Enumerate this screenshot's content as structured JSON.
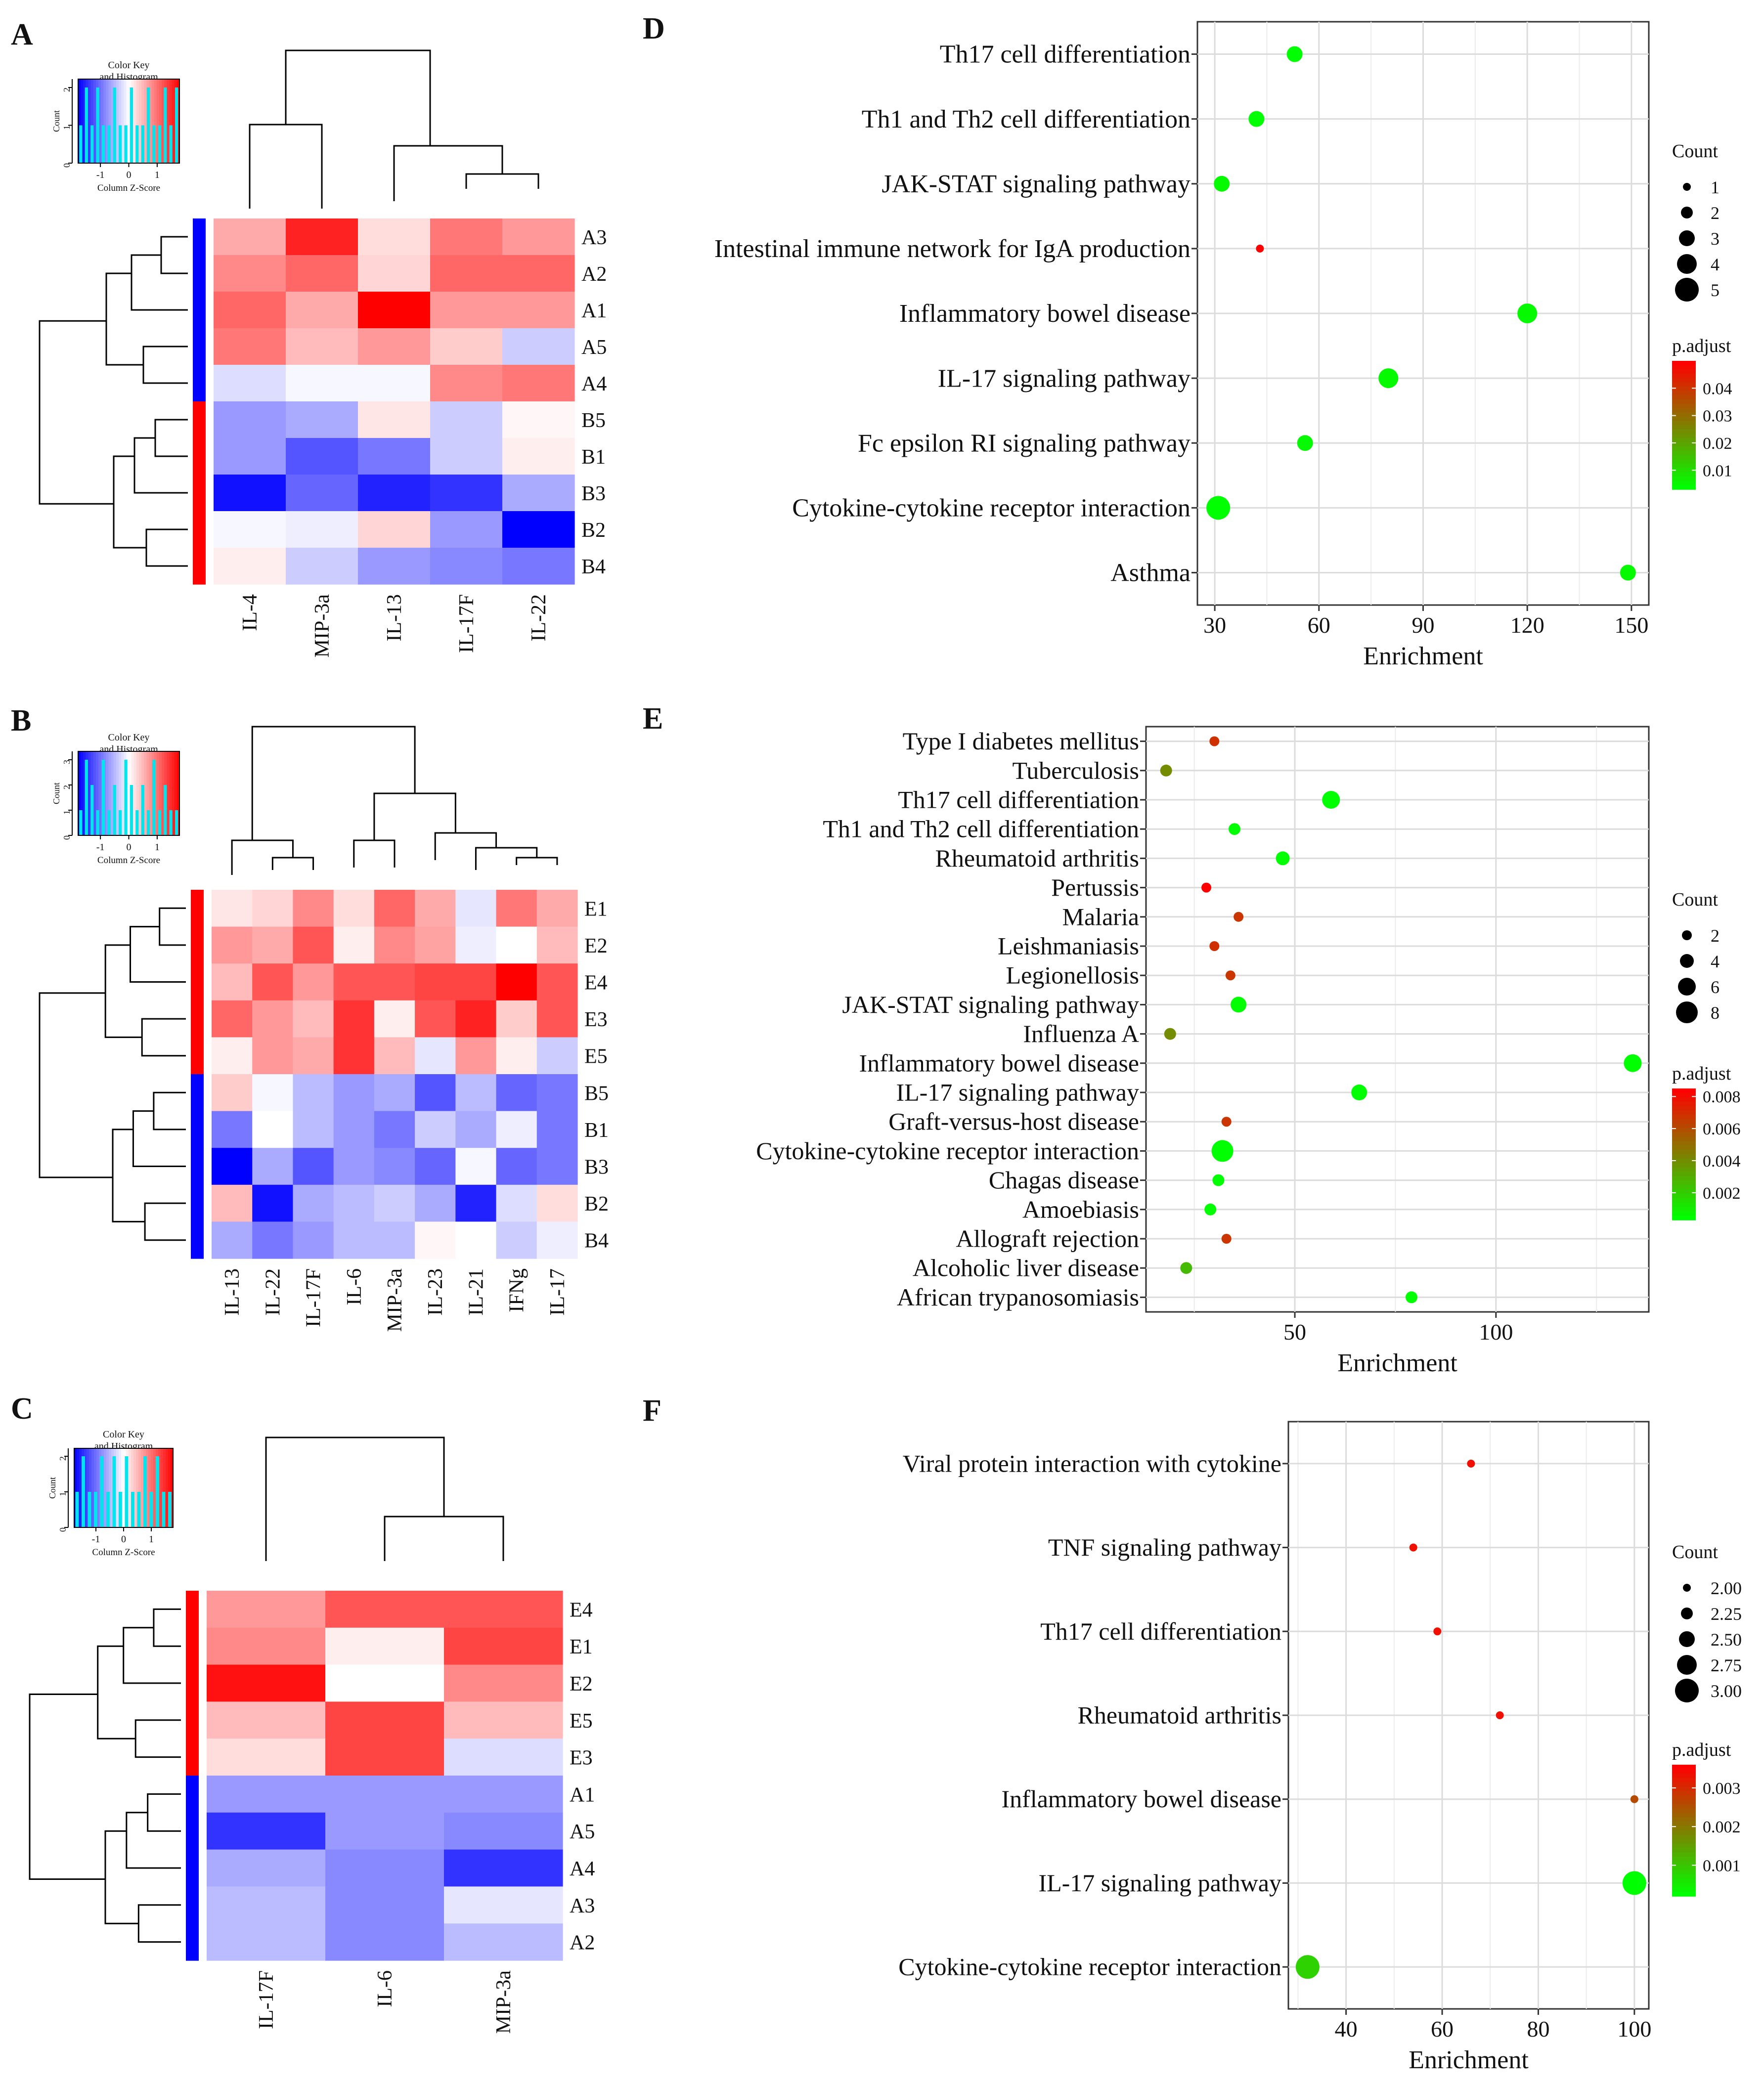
{
  "panel_labels": [
    "A",
    "B",
    "C",
    "D",
    "E",
    "F"
  ],
  "color_key": {
    "title_line1": "Color Key",
    "title_line2": "and Histogram",
    "xlabel": "Column Z-Score",
    "ylabel": "Count",
    "xticks": [
      "-1",
      "0",
      "1"
    ]
  },
  "colors": {
    "low": "#0000ff",
    "mid": "#ffffff",
    "high": "#ff0000",
    "hist": "#00e5ee",
    "dot_low": "#00ff00",
    "dot_high": "#ff0000"
  },
  "chart_data": [
    {
      "id": "A",
      "type": "heatmap",
      "columns": [
        "IL-4",
        "MIP-3a",
        "IL-13",
        "IL-17F",
        "IL-22"
      ],
      "rows": [
        "A3",
        "A2",
        "A1",
        "A5",
        "A4",
        "B5",
        "B1",
        "B3",
        "B2",
        "B4"
      ],
      "row_groups": [
        "A",
        "A",
        "A",
        "A",
        "A",
        "B",
        "B",
        "B",
        "B",
        "B"
      ],
      "values": [
        [
          0.5,
          1.3,
          0.2,
          0.8,
          0.6
        ],
        [
          0.7,
          0.9,
          0.25,
          0.9,
          0.9
        ],
        [
          0.9,
          0.5,
          1.5,
          0.6,
          0.6
        ],
        [
          0.8,
          0.4,
          0.6,
          0.3,
          -0.3
        ],
        [
          -0.2,
          -0.05,
          -0.05,
          0.7,
          0.8
        ],
        [
          -0.6,
          -0.5,
          0.15,
          -0.3,
          0.05
        ],
        [
          -0.6,
          -1.0,
          -0.8,
          -0.3,
          0.1
        ],
        [
          -1.4,
          -0.9,
          -1.3,
          -1.2,
          -0.5
        ],
        [
          -0.05,
          -0.1,
          0.25,
          -0.6,
          -1.5
        ],
        [
          0.1,
          -0.3,
          -0.6,
          -0.7,
          -0.8
        ]
      ],
      "hist_counts": [
        1,
        2,
        1,
        2,
        1,
        1,
        2,
        1,
        1,
        2,
        1,
        1,
        2,
        1,
        1,
        2,
        1,
        2
      ],
      "hist_ymax": 2,
      "hist_yticks": [
        "0",
        "1",
        "2"
      ]
    },
    {
      "id": "B",
      "type": "heatmap",
      "columns": [
        "IL-13",
        "IL-22",
        "IL-17F",
        "IL-6",
        "MIP-3a",
        "IL-23",
        "IL-21",
        "IFNg",
        "IL-17"
      ],
      "rows": [
        "E1",
        "E2",
        "E4",
        "E3",
        "E5",
        "B5",
        "B1",
        "B3",
        "B2",
        "B4"
      ],
      "row_groups": [
        "E",
        "E",
        "E",
        "E",
        "E",
        "B",
        "B",
        "B",
        "B",
        "B"
      ],
      "values": [
        [
          0.15,
          0.25,
          0.7,
          0.2,
          0.9,
          0.5,
          -0.15,
          0.8,
          0.5
        ],
        [
          0.6,
          0.5,
          1.0,
          0.1,
          0.7,
          0.55,
          -0.1,
          0.0,
          0.4
        ],
        [
          0.4,
          1.0,
          0.6,
          1.0,
          1.0,
          1.1,
          1.1,
          1.5,
          1.0
        ],
        [
          0.9,
          0.6,
          0.4,
          1.2,
          0.1,
          1.0,
          1.3,
          0.3,
          1.0
        ],
        [
          0.1,
          0.6,
          0.5,
          1.2,
          0.4,
          -0.15,
          0.6,
          0.1,
          -0.3
        ],
        [
          0.3,
          -0.05,
          -0.4,
          -0.6,
          -0.5,
          -1.0,
          -0.4,
          -0.9,
          -0.8
        ],
        [
          -0.8,
          0.0,
          -0.4,
          -0.6,
          -0.8,
          -0.3,
          -0.5,
          -0.1,
          -0.8
        ],
        [
          -1.5,
          -0.5,
          -1.0,
          -0.6,
          -0.7,
          -0.9,
          -0.05,
          -0.9,
          -0.8
        ],
        [
          0.4,
          -1.4,
          -0.5,
          -0.4,
          -0.3,
          -0.5,
          -1.3,
          -0.2,
          0.2
        ],
        [
          -0.5,
          -0.8,
          -0.6,
          -0.4,
          -0.4,
          0.05,
          0.0,
          -0.3,
          -0.1
        ]
      ],
      "hist_counts": [
        1,
        3,
        2,
        1,
        3,
        1,
        2,
        1,
        3,
        2,
        1,
        2,
        1,
        3,
        1,
        2,
        1,
        1
      ],
      "hist_ymax": 3,
      "hist_yticks": [
        "0",
        "1",
        "2",
        "3"
      ]
    },
    {
      "id": "C",
      "type": "heatmap",
      "columns": [
        "IL-17F",
        "IL-6",
        "MIP-3a"
      ],
      "rows": [
        "E4",
        "E1",
        "E2",
        "E5",
        "E3",
        "A1",
        "A5",
        "A4",
        "A3",
        "A2"
      ],
      "row_groups": [
        "E",
        "E",
        "E",
        "E",
        "E",
        "A",
        "A",
        "A",
        "A",
        "A"
      ],
      "values": [
        [
          0.6,
          1.0,
          1.0
        ],
        [
          0.7,
          0.1,
          1.1
        ],
        [
          1.4,
          0.0,
          0.7
        ],
        [
          0.4,
          1.1,
          0.4
        ],
        [
          0.2,
          1.1,
          -0.2
        ],
        [
          -0.6,
          -0.6,
          -0.6
        ],
        [
          -1.2,
          -0.6,
          -0.7
        ],
        [
          -0.5,
          -0.7,
          -1.2
        ],
        [
          -0.4,
          -0.7,
          -0.15
        ],
        [
          -0.4,
          -0.7,
          -0.4
        ]
      ],
      "hist_counts": [
        1,
        2,
        1,
        1,
        2,
        1,
        2,
        1,
        2,
        1,
        1,
        2,
        1,
        2,
        1,
        1
      ],
      "hist_ymax": 2,
      "hist_yticks": [
        "0",
        "1",
        "2"
      ]
    },
    {
      "id": "D",
      "type": "scatter",
      "xlabel": "Enrichment",
      "xlim": [
        25,
        155
      ],
      "xticks": [
        30,
        60,
        90,
        120,
        150
      ],
      "categories": [
        "Th17 cell differentiation",
        "Th1 and Th2 cell differentiation",
        "JAK-STAT signaling pathway",
        "Intestinal immune network for IgA production",
        "Inflammatory bowel disease",
        "IL-17 signaling pathway",
        "Fc epsilon RI signaling pathway",
        "Cytokine-cytokine receptor interaction",
        "Asthma"
      ],
      "x": [
        53,
        42,
        32,
        43,
        120,
        80,
        56,
        31,
        149
      ],
      "count": [
        3,
        3,
        3,
        1,
        4,
        4,
        3,
        5,
        3
      ],
      "p_adjust": [
        0.003,
        0.003,
        0.004,
        0.05,
        0.004,
        0.004,
        0.004,
        0.003,
        0.004
      ],
      "count_legend_title": "Count",
      "count_legend": [
        "1",
        "2",
        "3",
        "4",
        "5"
      ],
      "count_legend_values": [
        1,
        2,
        3,
        4,
        5
      ],
      "count_range": [
        1,
        5
      ],
      "padj_legend_title": "p.adjust",
      "padj_ticks": [
        "0.04",
        "0.03",
        "0.02",
        "0.01"
      ],
      "padj_tick_values": [
        0.04,
        0.03,
        0.02,
        0.01
      ],
      "padj_range": [
        0.003,
        0.05
      ]
    },
    {
      "id": "E",
      "type": "scatter",
      "xlabel": "Enrichment",
      "xlim": [
        13,
        138
      ],
      "xticks": [
        50,
        100
      ],
      "categories": [
        "Type I diabetes mellitus",
        "Tuberculosis",
        "Th17 cell differentiation",
        "Th1 and Th2 cell differentiation",
        "Rheumatoid arthritis",
        "Pertussis",
        "Malaria",
        "Leishmaniasis",
        "Legionellosis",
        "JAK-STAT signaling pathway",
        "Influenza A",
        "Inflammatory bowel disease",
        "IL-17 signaling pathway",
        "Graft-versus-host disease",
        "Cytokine-cytokine receptor interaction",
        "Chagas disease",
        "Amoebiasis",
        "Allograft rejection",
        "Alcoholic liver disease",
        "African trypanosomiasis"
      ],
      "x": [
        30,
        18,
        59,
        35,
        47,
        28,
        36,
        30,
        34,
        36,
        19,
        134,
        66,
        33,
        32,
        31,
        29,
        33,
        23,
        79
      ],
      "count": [
        2,
        3,
        6,
        3,
        4,
        2,
        2,
        2,
        2,
        5,
        3,
        6,
        5,
        2,
        8,
        3,
        3,
        2,
        3,
        3
      ],
      "p_adjust": [
        0.007,
        0.004,
        0.0003,
        0.0003,
        0.0003,
        0.0085,
        0.0068,
        0.007,
        0.0068,
        0.0003,
        0.004,
        0.0003,
        0.0003,
        0.0068,
        0.0003,
        0.0003,
        0.0003,
        0.0068,
        0.0025,
        0.0003
      ],
      "count_legend_title": "Count",
      "count_legend": [
        "2",
        "4",
        "6",
        "8"
      ],
      "count_legend_values": [
        2,
        4,
        6,
        8
      ],
      "count_range": [
        2,
        8
      ],
      "padj_legend_title": "p.adjust",
      "padj_ticks": [
        "0.008",
        "0.006",
        "0.004",
        "0.002"
      ],
      "padj_tick_values": [
        0.008,
        0.006,
        0.004,
        0.002
      ],
      "padj_range": [
        0.0003,
        0.0085
      ]
    },
    {
      "id": "F",
      "type": "scatter",
      "xlabel": "Enrichment",
      "xlim": [
        28,
        103
      ],
      "xticks": [
        40,
        60,
        80,
        100
      ],
      "categories": [
        "Viral protein interaction with cytokine",
        "TNF signaling pathway",
        "Th17 cell differentiation",
        "Rheumatoid arthritis",
        "Inflammatory bowel disease",
        "IL-17 signaling pathway",
        "Cytokine-cytokine receptor interaction"
      ],
      "x": [
        66,
        54,
        59,
        72,
        100,
        100,
        32
      ],
      "count": [
        2,
        2,
        2,
        2,
        2,
        3,
        3
      ],
      "p_adjust": [
        0.0034,
        0.0034,
        0.0034,
        0.0034,
        0.0026,
        0.0002,
        0.0008
      ],
      "count_legend_title": "Count",
      "count_legend": [
        "2.00",
        "2.25",
        "2.50",
        "2.75",
        "3.00"
      ],
      "count_legend_values": [
        2.0,
        2.25,
        2.5,
        2.75,
        3.0
      ],
      "count_range": [
        2,
        3
      ],
      "padj_legend_title": "p.adjust",
      "padj_ticks": [
        "0.003",
        "0.002",
        "0.001"
      ],
      "padj_tick_values": [
        0.003,
        0.002,
        0.001
      ],
      "padj_range": [
        0.0002,
        0.0036
      ]
    }
  ]
}
